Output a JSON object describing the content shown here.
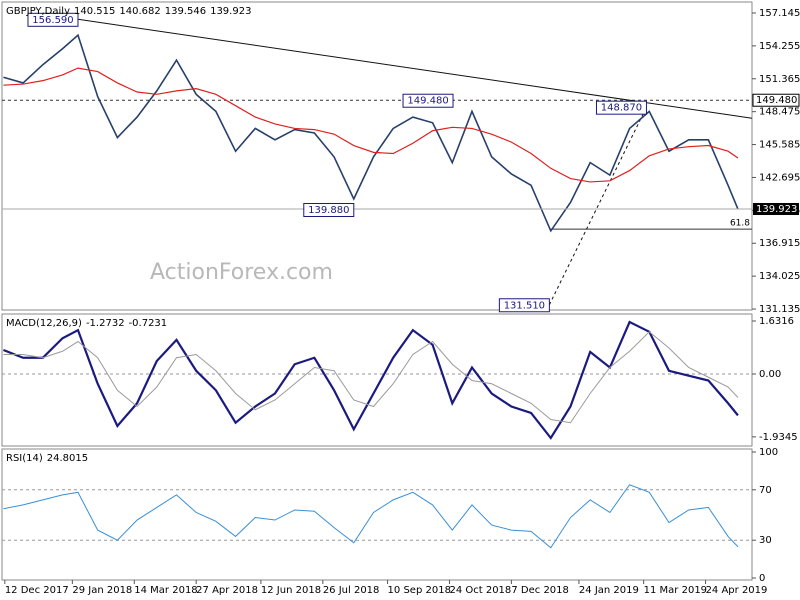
{
  "chart_data": [
    {
      "type": "line",
      "title": "GBPJPY,Daily",
      "ohlc": [
        140.515,
        140.682,
        139.546,
        139.923
      ],
      "watermark": "ActionForex.com",
      "xlim": [
        "2017-12-10",
        "2019-05-27"
      ],
      "x": [
        "2017-12-11",
        "2017-12-25",
        "2018-01-08",
        "2018-01-22",
        "2018-02-02",
        "2018-02-16",
        "2018-03-02",
        "2018-03-16",
        "2018-03-30",
        "2018-04-13",
        "2018-04-27",
        "2018-05-11",
        "2018-05-25",
        "2018-06-08",
        "2018-06-22",
        "2018-07-06",
        "2018-07-20",
        "2018-08-03",
        "2018-08-17",
        "2018-08-31",
        "2018-09-14",
        "2018-09-28",
        "2018-10-12",
        "2018-10-26",
        "2018-11-09",
        "2018-11-23",
        "2018-12-07",
        "2018-12-21",
        "2019-01-04",
        "2019-01-18",
        "2019-02-01",
        "2019-02-15",
        "2019-03-01",
        "2019-03-15",
        "2019-03-29",
        "2019-04-12",
        "2019-04-26",
        "2019-05-10",
        "2019-05-17"
      ],
      "series": [
        {
          "color": "#27406b",
          "width": 1.6,
          "values": [
            151.5,
            151.0,
            152.6,
            154.0,
            155.2,
            149.8,
            146.2,
            148.0,
            150.3,
            153.0,
            150.0,
            148.5,
            145.0,
            147.0,
            146.0,
            146.9,
            146.6,
            144.5,
            140.8,
            144.5,
            147.0,
            148.0,
            147.5,
            144.0,
            148.5,
            144.5,
            143.0,
            142.0,
            138.0,
            140.5,
            144.0,
            142.9,
            147.0,
            148.5,
            145.0,
            146.0,
            146.0,
            142.0,
            139.923
          ]
        },
        {
          "color": "#e02020",
          "width": 1.2,
          "values": [
            150.8,
            150.9,
            151.2,
            151.7,
            152.3,
            152.0,
            151.0,
            150.2,
            150.0,
            150.3,
            150.5,
            150.0,
            149.0,
            148.0,
            147.4,
            147.0,
            146.9,
            146.5,
            145.5,
            144.9,
            144.8,
            145.7,
            146.8,
            147.1,
            147.0,
            146.5,
            145.8,
            144.8,
            143.5,
            142.6,
            142.3,
            142.4,
            143.3,
            144.6,
            145.2,
            145.4,
            145.5,
            145.0,
            144.4
          ]
        }
      ],
      "ylim": [
        131.05,
        158.11
      ],
      "yticks": [
        157.145,
        154.255,
        151.365,
        148.475,
        145.585,
        142.695,
        139.805,
        136.915,
        134.025,
        131.135
      ],
      "trendlines": [
        {
          "x": [
            "2018-02-02",
            "2019-05-27"
          ],
          "values": [
            156.59,
            147.9
          ],
          "dashed": false
        },
        {
          "x": [
            "2019-01-03",
            "2019-03-13"
          ],
          "values": [
            131.51,
            148.87
          ],
          "dashed": true
        }
      ],
      "hlines": [
        {
          "value": 149.48,
          "label": "149.480",
          "dashed": true
        }
      ],
      "fib": {
        "x": "2019-01-03",
        "value": 138.16,
        "label": "61.8"
      },
      "annotations": [
        {
          "x": "2018-02-02",
          "value": 156.59,
          "label": "156.590",
          "side": "left"
        },
        {
          "x": "2018-08-17",
          "value": 139.88,
          "label": "139.880",
          "side": "left"
        },
        {
          "x": "2018-09-21",
          "value": 149.48,
          "label": "149.480",
          "side": "right"
        },
        {
          "x": "2019-01-03",
          "value": 131.51,
          "label": "131.510",
          "side": "left"
        },
        {
          "x": "2019-03-13",
          "value": 148.87,
          "label": "148.870",
          "side": "left"
        }
      ]
    },
    {
      "type": "line",
      "title": "MACD(12,26,9)",
      "xlim": [
        "2017-12-10",
        "2019-05-27"
      ],
      "x": [
        "2017-12-11",
        "2017-12-25",
        "2018-01-08",
        "2018-01-22",
        "2018-02-02",
        "2018-02-16",
        "2018-03-02",
        "2018-03-16",
        "2018-03-30",
        "2018-04-13",
        "2018-04-27",
        "2018-05-11",
        "2018-05-25",
        "2018-06-08",
        "2018-06-22",
        "2018-07-06",
        "2018-07-20",
        "2018-08-03",
        "2018-08-17",
        "2018-08-31",
        "2018-09-14",
        "2018-09-28",
        "2018-10-12",
        "2018-10-26",
        "2018-11-09",
        "2018-11-23",
        "2018-12-07",
        "2018-12-21",
        "2019-01-04",
        "2019-01-18",
        "2019-02-01",
        "2019-02-15",
        "2019-03-01",
        "2019-03-15",
        "2019-03-29",
        "2019-04-12",
        "2019-04-26",
        "2019-05-10",
        "2019-05-17"
      ],
      "series": [
        {
          "color": "#1a1a80",
          "width": 2.2,
          "values": [
            0.74,
            0.5,
            0.5,
            1.1,
            1.35,
            -0.3,
            -1.6,
            -0.9,
            0.4,
            1.05,
            0.1,
            -0.5,
            -1.5,
            -1.0,
            -0.6,
            0.3,
            0.5,
            -0.5,
            -1.7,
            -0.6,
            0.5,
            1.35,
            0.9,
            -0.9,
            0.2,
            -0.6,
            -1.0,
            -1.2,
            -1.97,
            -1.0,
            0.68,
            0.2,
            1.6,
            1.3,
            0.1,
            -0.05,
            -0.2,
            -0.9,
            -1.2732
          ]
        },
        {
          "color": "#9a9a9a",
          "width": 1,
          "values": [
            0.6,
            0.6,
            0.5,
            0.7,
            1.0,
            0.5,
            -0.5,
            -1.0,
            -0.4,
            0.5,
            0.6,
            0.1,
            -0.6,
            -1.1,
            -0.8,
            -0.3,
            0.2,
            0.1,
            -0.8,
            -1.0,
            -0.3,
            0.6,
            1.0,
            0.3,
            -0.2,
            -0.3,
            -0.6,
            -0.9,
            -1.4,
            -1.5,
            -0.6,
            0.2,
            0.7,
            1.3,
            0.8,
            0.2,
            -0.1,
            -0.4,
            -0.7231
          ]
        }
      ],
      "ylim": [
        -2.216,
        1.847
      ],
      "yticks": [
        1.6316,
        {
          "value": 0,
          "label": "0.00"
        },
        -1.9345
      ],
      "guide_lines": [
        0
      ]
    },
    {
      "type": "line",
      "title": "RSI(14)",
      "xlim": [
        "2017-12-10",
        "2019-05-27"
      ],
      "x": [
        "2017-12-11",
        "2017-12-25",
        "2018-01-08",
        "2018-01-22",
        "2018-02-02",
        "2018-02-16",
        "2018-03-02",
        "2018-03-16",
        "2018-03-30",
        "2018-04-13",
        "2018-04-27",
        "2018-05-11",
        "2018-05-25",
        "2018-06-08",
        "2018-06-22",
        "2018-07-06",
        "2018-07-20",
        "2018-08-03",
        "2018-08-17",
        "2018-08-31",
        "2018-09-14",
        "2018-09-28",
        "2018-10-12",
        "2018-10-26",
        "2018-11-09",
        "2018-11-23",
        "2018-12-07",
        "2018-12-21",
        "2019-01-04",
        "2019-01-18",
        "2019-02-01",
        "2019-02-15",
        "2019-03-01",
        "2019-03-15",
        "2019-03-29",
        "2019-04-12",
        "2019-04-26",
        "2019-05-10",
        "2019-05-17"
      ],
      "series": [
        {
          "color": "#3a8fd6",
          "width": 1,
          "values": [
            55,
            58,
            62,
            66,
            68,
            38,
            30,
            46,
            56,
            66,
            52,
            45,
            33,
            48,
            46,
            54,
            53,
            40,
            28,
            52,
            62,
            68,
            58,
            38,
            58,
            42,
            38,
            37,
            24,
            48,
            62,
            52,
            74,
            68,
            44,
            54,
            56,
            33,
            24.8015
          ]
        }
      ],
      "ylim": [
        0,
        100
      ],
      "yticks": [
        100,
        70,
        30,
        0
      ],
      "guide_lines": [
        70,
        30
      ],
      "xticks": [
        {
          "value": "2017-12-12",
          "label": "12 Dec 2017"
        },
        {
          "value": "2018-01-29",
          "label": "29 Jan 2018"
        },
        {
          "value": "2018-03-14",
          "label": "14 Mar 2018"
        },
        {
          "value": "2018-04-27",
          "label": "27 Apr 2018"
        },
        {
          "value": "2018-06-12",
          "label": "12 Jun 2018"
        },
        {
          "value": "2018-07-26",
          "label": "26 Jul 2018"
        },
        {
          "value": "2018-09-10",
          "label": "10 Sep 2018"
        },
        {
          "value": "2018-10-24",
          "label": "24 Oct 2018"
        },
        {
          "value": "2018-12-07",
          "label": "7 Dec 2018"
        },
        {
          "value": "2019-01-24",
          "label": "24 Jan 2019"
        },
        {
          "value": "2019-03-11",
          "label": "11 Mar 2019"
        },
        {
          "value": "2019-04-24",
          "label": "24 Apr 2019"
        }
      ]
    }
  ]
}
